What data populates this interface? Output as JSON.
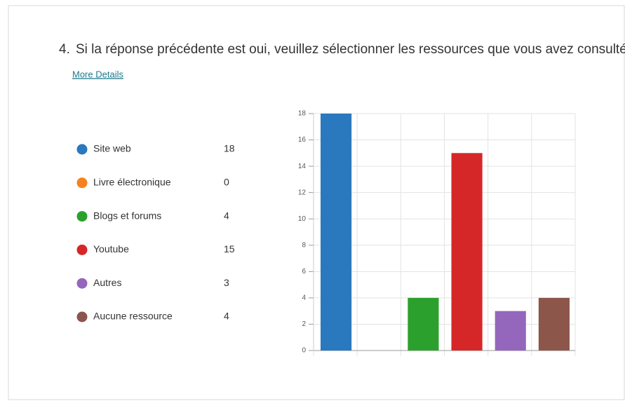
{
  "question_number": "4.",
  "more_details": "More Details",
  "chart_data": {
    "type": "bar",
    "title": "Si la réponse précédente est oui, veuillez sélectionner les ressources que vous avez consultées",
    "categories": [
      "Site web",
      "Livre électronique",
      "Blogs et forums",
      "Youtube",
      "Autres",
      "Aucune ressource"
    ],
    "values": [
      18,
      0,
      4,
      15,
      3,
      4
    ],
    "colors": [
      "#2a78bd",
      "#f5821f",
      "#2ca02c",
      "#d62728",
      "#9467bd",
      "#8c564b"
    ],
    "ylim": [
      0,
      18
    ],
    "yticks": [
      0,
      2,
      4,
      6,
      8,
      10,
      12,
      14,
      16,
      18
    ],
    "grid": true
  }
}
